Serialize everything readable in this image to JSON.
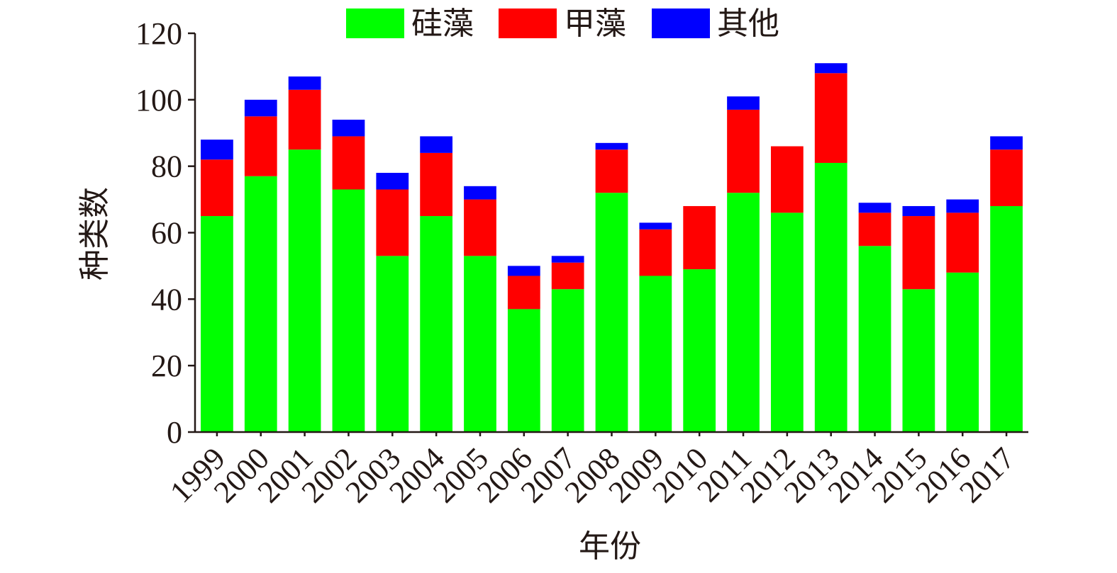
{
  "chart_data": {
    "type": "bar",
    "stacked": true,
    "title": "",
    "xlabel": "年份",
    "ylabel": "种类数",
    "ylim": [
      0,
      120
    ],
    "yticks": [
      "0",
      "20",
      "40",
      "60",
      "80",
      "100",
      "120"
    ],
    "categories": [
      "1999",
      "2000",
      "2001",
      "2002",
      "2003",
      "2004",
      "2005",
      "2006",
      "2007",
      "2008",
      "2009",
      "2010",
      "2011",
      "2012",
      "2013",
      "2014",
      "2015",
      "2016",
      "2017"
    ],
    "series": [
      {
        "name": "硅藻",
        "color": "#00ff00",
        "values": [
          65,
          77,
          85,
          73,
          53,
          65,
          53,
          37,
          43,
          72,
          47,
          49,
          72,
          66,
          81,
          56,
          43,
          48,
          68
        ]
      },
      {
        "name": "甲藻",
        "color": "#ff0000",
        "values": [
          17,
          18,
          18,
          16,
          20,
          19,
          17,
          10,
          8,
          13,
          14,
          19,
          25,
          20,
          27,
          10,
          22,
          18,
          17
        ]
      },
      {
        "name": "其他",
        "color": "#0000ff",
        "values": [
          6,
          5,
          4,
          5,
          5,
          5,
          4,
          3,
          2,
          2,
          2,
          0,
          4,
          0,
          3,
          3,
          3,
          4,
          4
        ]
      }
    ],
    "legend_position": "top",
    "grid": false
  }
}
